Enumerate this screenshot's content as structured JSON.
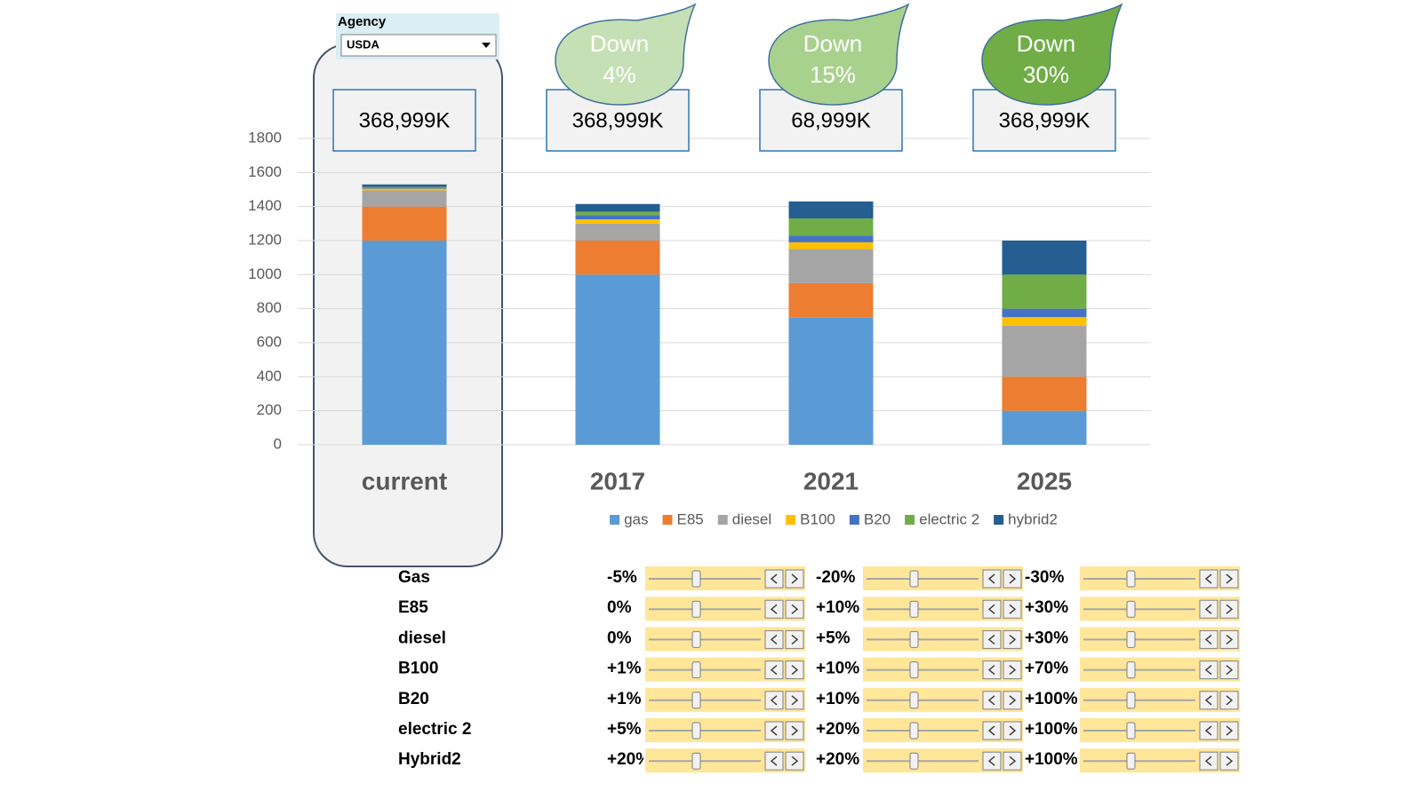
{
  "agency": {
    "label": "Agency",
    "value": "USDA"
  },
  "chart_data": {
    "type": "bar",
    "stacked": true,
    "categories": [
      "current",
      "2017",
      "2021",
      "2025"
    ],
    "series": [
      {
        "name": "gas",
        "color": "#5b9bd5",
        "values": [
          1200,
          1000,
          750,
          200
        ]
      },
      {
        "name": "E85",
        "color": "#ed7d31",
        "values": [
          200,
          200,
          200,
          200
        ]
      },
      {
        "name": "diesel",
        "color": "#a5a5a5",
        "values": [
          95,
          100,
          200,
          300
        ]
      },
      {
        "name": "B100",
        "color": "#ffc000",
        "values": [
          10,
          25,
          40,
          50
        ]
      },
      {
        "name": "B20",
        "color": "#4472c4",
        "values": [
          5,
          25,
          40,
          50
        ]
      },
      {
        "name": "electric 2",
        "color": "#70ad47",
        "values": [
          5,
          20,
          100,
          200
        ]
      },
      {
        "name": "hybrid2",
        "color": "#255e91",
        "values": [
          15,
          45,
          100,
          200
        ]
      }
    ],
    "ylim": [
      0,
      1800
    ],
    "yticks": [
      0,
      200,
      400,
      600,
      800,
      1000,
      1200,
      1400,
      1600,
      1800
    ],
    "grid": true,
    "legend": "bottom"
  },
  "totals": [
    "368,999K",
    "368,999K",
    "68,999K",
    "368,999K"
  ],
  "callouts": [
    {
      "text": "Down",
      "change": "4%",
      "color": "#c5e0b4"
    },
    {
      "text": "Down",
      "change": "15%",
      "color": "#a9d18e"
    },
    {
      "text": "Down",
      "change": "30%",
      "color": "#70ad47"
    }
  ],
  "adjustments": [
    {
      "label": "Gas",
      "values": [
        "-5%",
        "-20%",
        "-30%"
      ]
    },
    {
      "label": "E85",
      "values": [
        "0%",
        "+10%",
        "+30%"
      ]
    },
    {
      "label": "diesel",
      "values": [
        "0%",
        "+5%",
        "+30%"
      ]
    },
    {
      "label": "B100",
      "values": [
        "+1%",
        "+10%",
        "+70%"
      ]
    },
    {
      "label": "B20",
      "values": [
        "+1%",
        "+10%",
        "+100%"
      ]
    },
    {
      "label": "electric 2",
      "values": [
        "+5%",
        "+20%",
        "+100%"
      ]
    },
    {
      "label": "Hybrid2",
      "values": [
        "+20%",
        "+20%",
        "+100%"
      ]
    }
  ]
}
